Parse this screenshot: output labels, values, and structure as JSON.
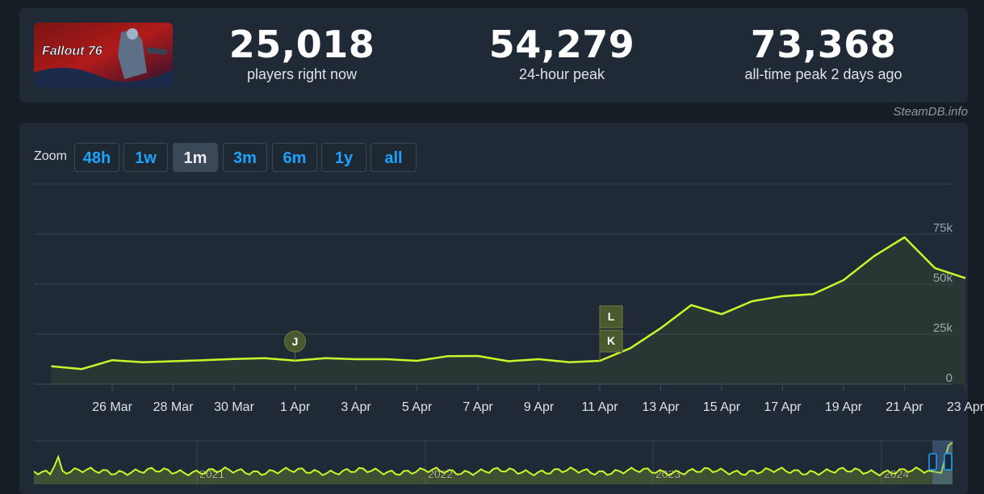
{
  "header": {
    "logo_text": "Fallout 76",
    "players_now": "25,018",
    "players_now_label": "players right now",
    "peak_24h": "54,279",
    "peak_24h_label": "24-hour peak",
    "all_time_peak": "73,368",
    "all_time_peak_label": "all-time peak 2 days ago"
  },
  "credit": "SteamDB.info",
  "zoom": {
    "label": "Zoom",
    "options": [
      "48h",
      "1w",
      "1m",
      "3m",
      "6m",
      "1y",
      "all"
    ],
    "active": "1m"
  },
  "colors": {
    "line": "#c9f72a",
    "panel": "#202a36",
    "page": "#171d25",
    "link": "#1aa3ff",
    "marker": "#4a5a2f"
  },
  "chart_data": {
    "type": "line",
    "title": "",
    "xlabel": "",
    "ylabel": "",
    "x_ticks": [
      "26 Mar",
      "28 Mar",
      "30 Mar",
      "1 Apr",
      "3 Apr",
      "5 Apr",
      "7 Apr",
      "9 Apr",
      "11 Apr",
      "13 Apr",
      "15 Apr",
      "17 Apr",
      "19 Apr",
      "21 Apr",
      "23 Apr"
    ],
    "y_ticks": [
      "0",
      "25k",
      "50k",
      "75k"
    ],
    "ylim": [
      0,
      100000
    ],
    "grid": true,
    "series": [
      {
        "x": [
          "24 Mar",
          "25 Mar",
          "26 Mar",
          "27 Mar",
          "28 Mar",
          "29 Mar",
          "30 Mar",
          "31 Mar",
          "1 Apr",
          "2 Apr",
          "3 Apr",
          "4 Apr",
          "5 Apr",
          "6 Apr",
          "7 Apr",
          "8 Apr",
          "9 Apr",
          "10 Apr",
          "11 Apr",
          "12 Apr",
          "13 Apr",
          "14 Apr",
          "15 Apr",
          "16 Apr",
          "17 Apr",
          "18 Apr",
          "19 Apr",
          "20 Apr",
          "21 Apr",
          "22 Apr",
          "23 Apr"
        ],
        "values": [
          9000,
          7600,
          12000,
          11000,
          11500,
          12000,
          12600,
          13000,
          11800,
          13000,
          12500,
          12500,
          11700,
          14000,
          14100,
          11500,
          12500,
          11000,
          11700,
          18000,
          28000,
          39500,
          35000,
          41500,
          44000,
          45000,
          52000,
          64000,
          73400,
          58000,
          53000
        ]
      }
    ],
    "annotations": [
      {
        "label": "J",
        "x": "1 Apr",
        "style": "circle"
      },
      {
        "label": "K",
        "x": "11 Apr",
        "style": "flag"
      },
      {
        "label": "L",
        "x": "11 Apr",
        "style": "flag"
      }
    ]
  },
  "navigator": {
    "year_labels": [
      "2021",
      "2022",
      "2023",
      "2024"
    ],
    "handle_glyph": "|||"
  }
}
